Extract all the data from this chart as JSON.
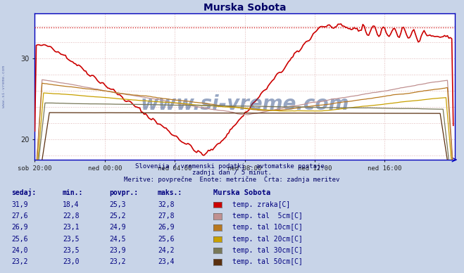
{
  "title": "Murska Sobota",
  "background_color": "#c8d4e8",
  "plot_bg_color": "#ffffff",
  "axis_color": "#0000bb",
  "title_color": "#000066",
  "subtitle_line1": "Slovenija / vremenski podatki - avtomatske postaje.",
  "subtitle_line2": "zadnji dan / 5 minut.",
  "subtitle_line3": "Meritve: povprečne  Enote: metrične  Črta: zadnja meritev",
  "xlabel_ticks": [
    "sob 20:00",
    "ned 00:00",
    "ned 04:00",
    "ned 08:00",
    "ned 12:00",
    "ned 16:00"
  ],
  "ylim": [
    17.5,
    35.5
  ],
  "xlim": [
    0,
    288
  ],
  "tick_positions": [
    0,
    48,
    96,
    144,
    192,
    240
  ],
  "series_colors": [
    "#cc0000",
    "#c09090",
    "#b87820",
    "#c8a000",
    "#787858",
    "#5a3010"
  ],
  "series_labels": [
    "temp. zraka[C]",
    "temp. tal  5cm[C]",
    "temp. tal 10cm[C]",
    "temp. tal 20cm[C]",
    "temp. tal 30cm[C]",
    "temp. tal 50cm[C]"
  ],
  "table_headers": [
    "sedaj:",
    "min.:",
    "povpr.:",
    "maks.:"
  ],
  "table_data": [
    [
      "31,9",
      "18,4",
      "25,3",
      "32,8"
    ],
    [
      "27,6",
      "22,8",
      "25,2",
      "27,8"
    ],
    [
      "26,9",
      "23,1",
      "24,9",
      "26,9"
    ],
    [
      "25,6",
      "23,5",
      "24,5",
      "25,6"
    ],
    [
      "24,0",
      "23,5",
      "23,9",
      "24,2"
    ],
    [
      "23,2",
      "23,0",
      "23,2",
      "23,4"
    ]
  ],
  "watermark": "www.si-vreme.com",
  "watermark_color": "#1a3a7a",
  "n_points": 288,
  "grid_color": "#e0b8b8",
  "max_line_y": 33.8
}
